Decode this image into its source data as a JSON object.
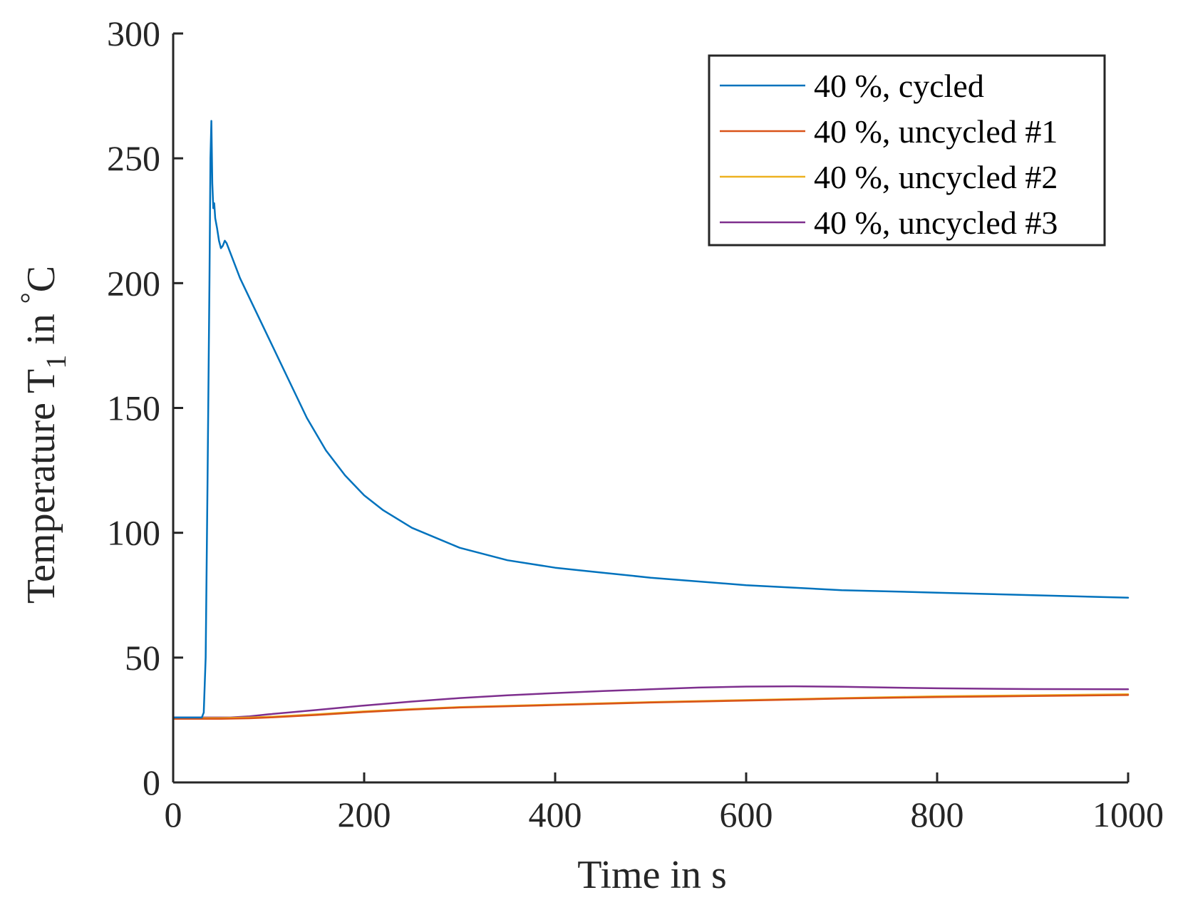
{
  "chart_data": {
    "type": "line",
    "title": "",
    "xlabel": "Time in s",
    "ylabel": {
      "main": "Temperature T",
      "subscript": "1",
      "suffix": " in ",
      "degree": "°",
      "unit": "C"
    },
    "xlim": [
      0,
      1000
    ],
    "ylim": [
      0,
      300
    ],
    "xticks": [
      0,
      200,
      400,
      600,
      800,
      1000
    ],
    "yticks": [
      0,
      50,
      100,
      150,
      200,
      250,
      300
    ],
    "xtick_labels": [
      "0",
      "200",
      "400",
      "600",
      "800",
      "1000"
    ],
    "ytick_labels": [
      "0",
      "50",
      "100",
      "150",
      "200",
      "250",
      "300"
    ],
    "grid": false,
    "legend_position": "top-right",
    "series": [
      {
        "name": "40 %, cycled",
        "color": "#0072BD",
        "x": [
          0,
          20,
          30,
          32,
          34,
          36,
          38,
          39,
          40,
          41,
          42,
          43,
          44,
          46,
          48,
          50,
          52,
          54,
          56,
          60,
          65,
          70,
          80,
          90,
          100,
          120,
          140,
          160,
          180,
          200,
          220,
          250,
          300,
          350,
          400,
          450,
          500,
          600,
          700,
          800,
          900,
          1000
        ],
        "y": [
          26,
          26,
          26,
          28,
          50,
          120,
          200,
          250,
          265,
          240,
          230,
          232,
          226,
          222,
          217,
          214,
          215,
          217,
          216,
          212,
          207,
          202,
          194,
          186,
          178,
          162,
          146,
          133,
          123,
          115,
          109,
          102,
          94,
          89,
          86,
          84,
          82,
          79,
          77,
          76,
          75,
          74
        ]
      },
      {
        "name": "40 %, uncycled #1",
        "color": "#D95319",
        "x": [
          0,
          50,
          80,
          100,
          150,
          200,
          250,
          300,
          400,
          500,
          600,
          700,
          800,
          900,
          1000
        ],
        "y": [
          25.5,
          25.5,
          25.7,
          26,
          27,
          28.2,
          29.2,
          30,
          31,
          32,
          32.8,
          33.6,
          34.2,
          34.6,
          35
        ]
      },
      {
        "name": "40 %, uncycled #2",
        "color": "#EDB120",
        "x": [
          0,
          50,
          80,
          100,
          150,
          200,
          250,
          300,
          400,
          500,
          600,
          700,
          800,
          900,
          1000
        ],
        "y": [
          25.8,
          25.8,
          26,
          26.3,
          27.3,
          28.5,
          29.4,
          30.2,
          31.2,
          32.2,
          33,
          33.8,
          34.5,
          34.9,
          35.3
        ]
      },
      {
        "name": "40 %, uncycled #3",
        "color": "#7E2F8E",
        "x": [
          0,
          60,
          80,
          100,
          150,
          200,
          250,
          300,
          350,
          400,
          450,
          500,
          550,
          600,
          650,
          700,
          750,
          800,
          900,
          1000
        ],
        "y": [
          26,
          26,
          26.5,
          27.3,
          29,
          30.8,
          32.4,
          33.8,
          34.9,
          35.8,
          36.6,
          37.3,
          38,
          38.4,
          38.5,
          38.3,
          38,
          37.7,
          37.4,
          37.3
        ]
      }
    ]
  }
}
